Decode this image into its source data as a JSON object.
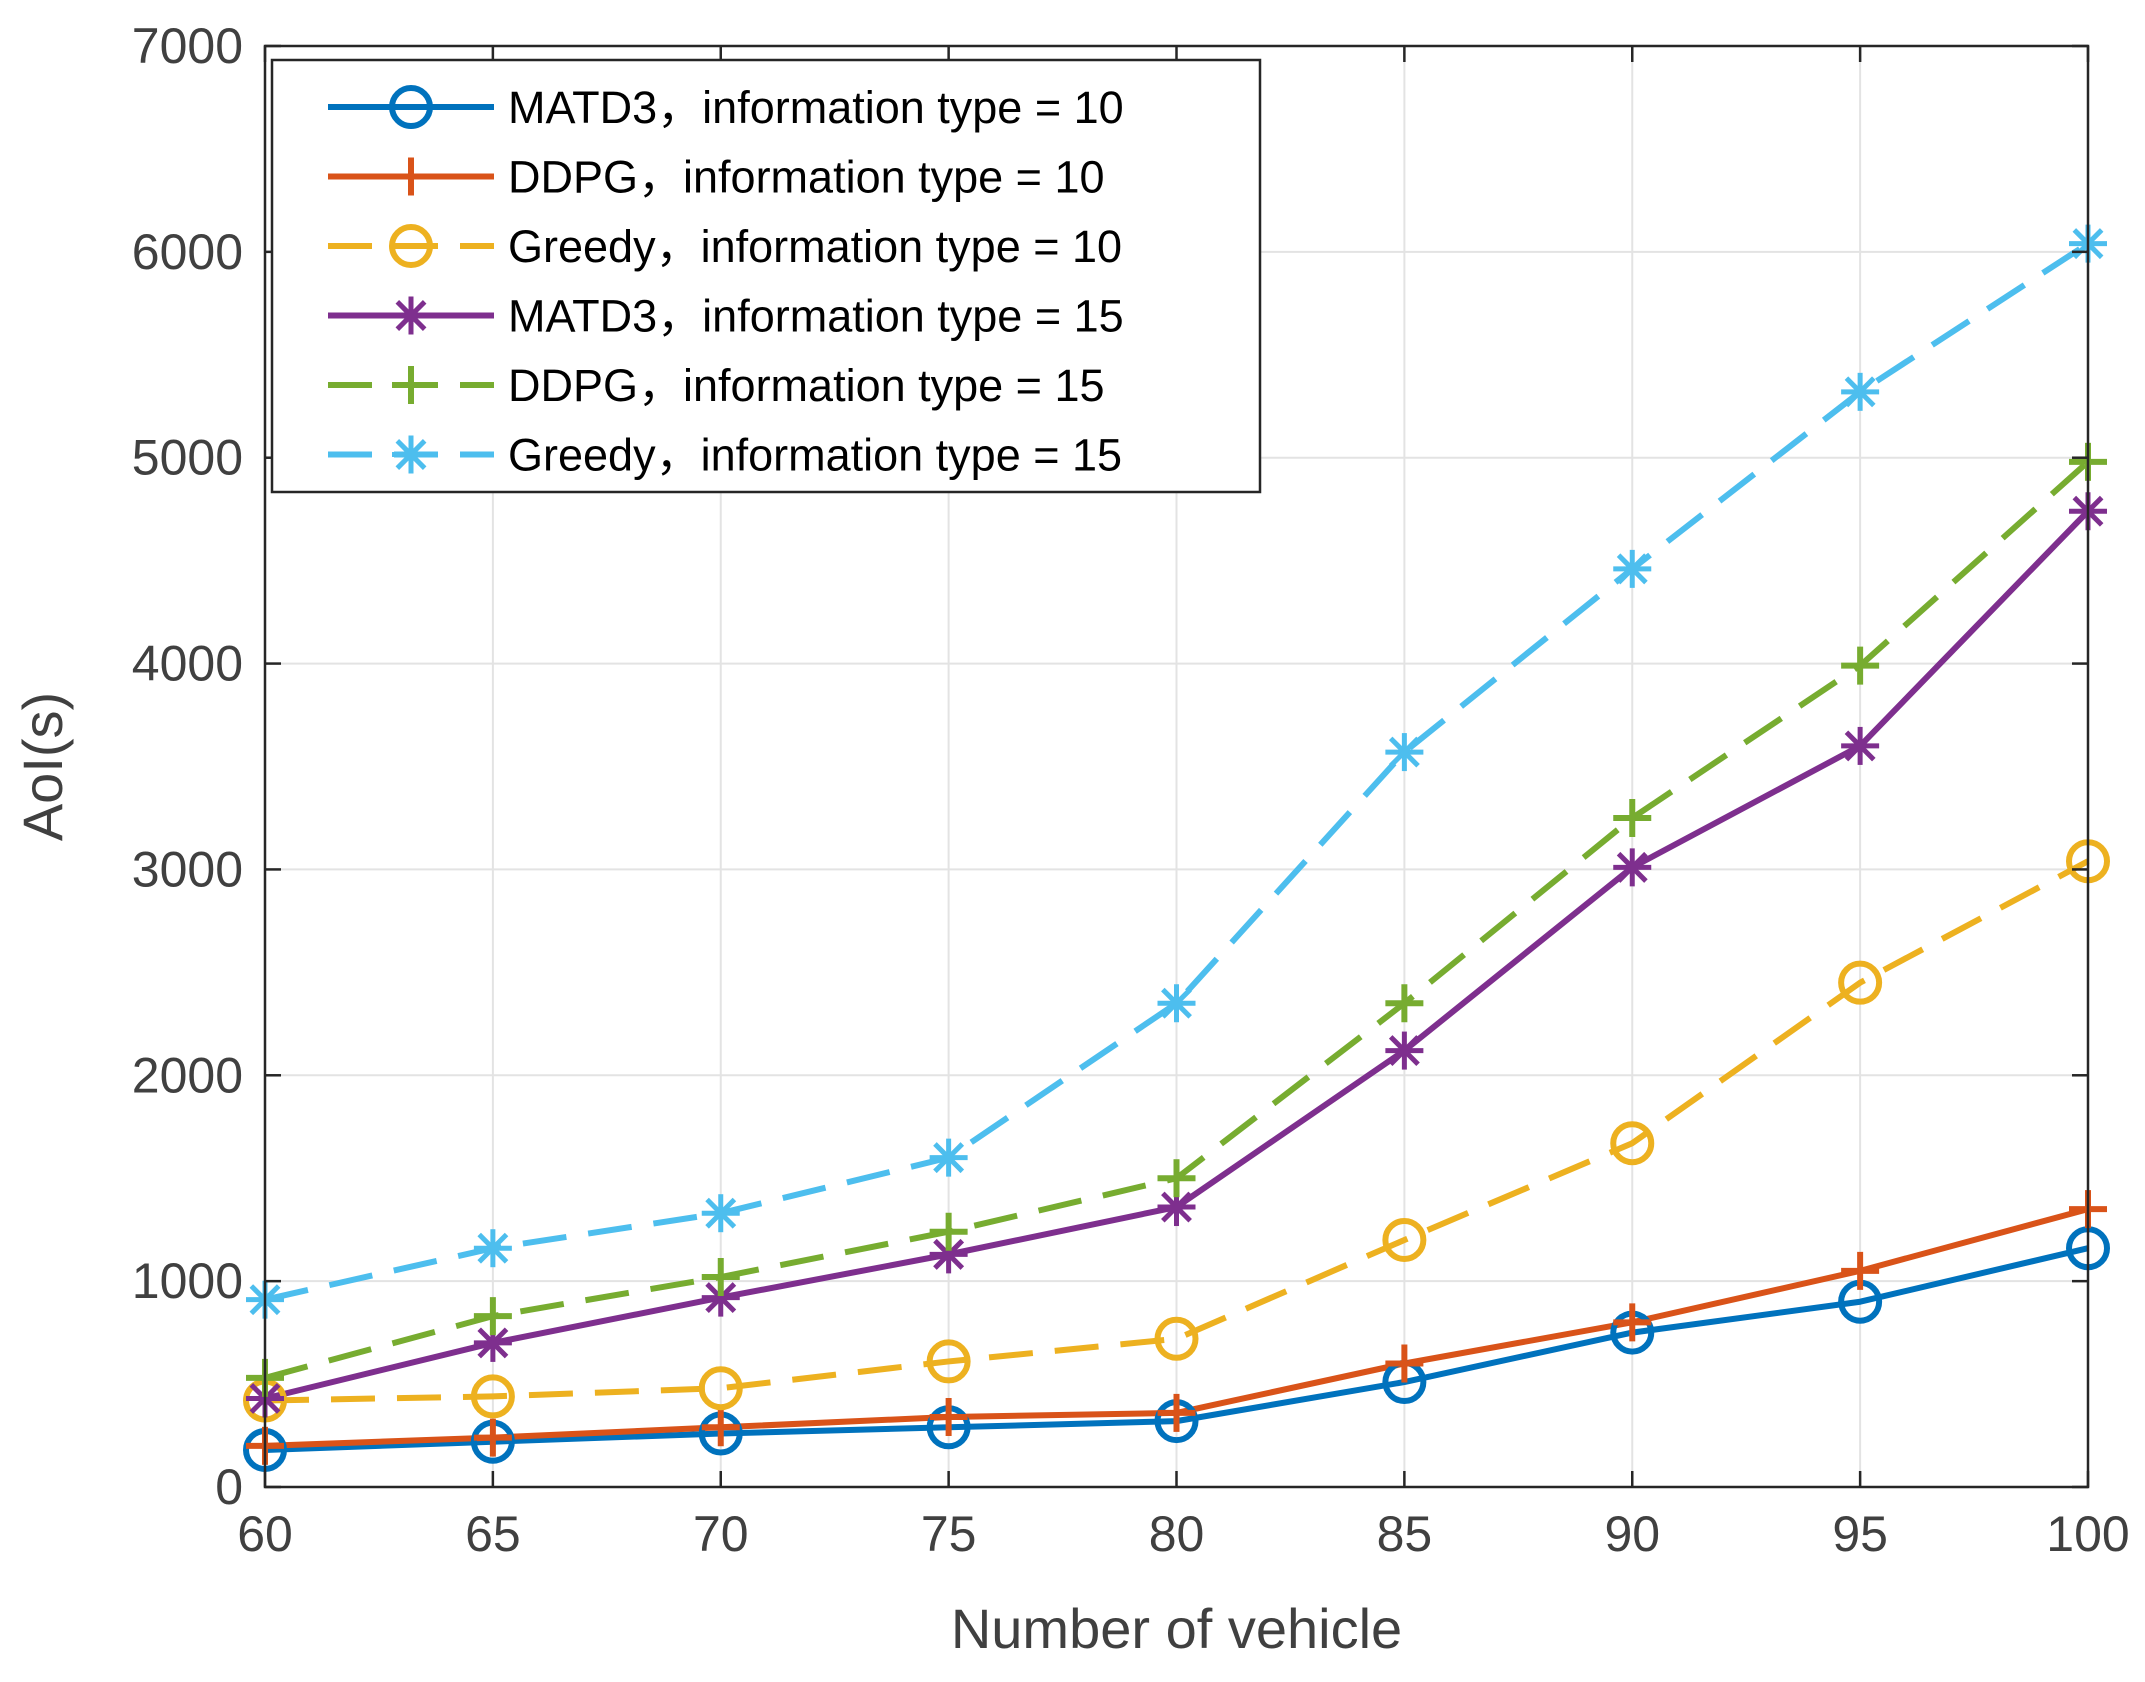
{
  "chart_data": {
    "type": "line",
    "title": "",
    "xlabel": "Number of vehicle",
    "ylabel": "AoI(s)",
    "xlim": [
      60,
      100
    ],
    "ylim": [
      0,
      7000
    ],
    "xticks": [
      60,
      65,
      70,
      75,
      80,
      85,
      90,
      95,
      100
    ],
    "yticks": [
      0,
      1000,
      2000,
      3000,
      4000,
      5000,
      6000,
      7000
    ],
    "grid": true,
    "legend_position": "top-left",
    "x": [
      60,
      65,
      70,
      75,
      80,
      85,
      90,
      95,
      100
    ],
    "series": [
      {
        "name": "MATD3，information type = 10",
        "color": "#0072BD",
        "line": "solid",
        "marker": "circle",
        "values": [
          180,
          220,
          260,
          290,
          320,
          510,
          750,
          900,
          1160
        ]
      },
      {
        "name": "DDPG，information type = 10",
        "color": "#D95319",
        "line": "solid",
        "marker": "plus",
        "values": [
          200,
          240,
          290,
          340,
          360,
          600,
          800,
          1050,
          1350
        ]
      },
      {
        "name": "Greedy，information type = 10",
        "color": "#EDB120",
        "line": "dashed",
        "marker": "circle",
        "values": [
          420,
          440,
          480,
          610,
          720,
          1200,
          1670,
          2450,
          3040
        ]
      },
      {
        "name": "MATD3，information type = 15",
        "color": "#7E2F8E",
        "line": "solid",
        "marker": "asterisk",
        "values": [
          430,
          700,
          920,
          1130,
          1360,
          2120,
          3010,
          3600,
          4740
        ]
      },
      {
        "name": "DDPG，information type = 15",
        "color": "#77AC30",
        "line": "dashed",
        "marker": "plus",
        "values": [
          530,
          830,
          1020,
          1240,
          1500,
          2350,
          3250,
          3990,
          4980
        ]
      },
      {
        "name": "Greedy，information type = 15",
        "color": "#4DBEEE",
        "line": "dashed",
        "marker": "asterisk",
        "values": [
          910,
          1160,
          1330,
          1600,
          2350,
          3570,
          4460,
          5320,
          6040
        ]
      }
    ]
  }
}
